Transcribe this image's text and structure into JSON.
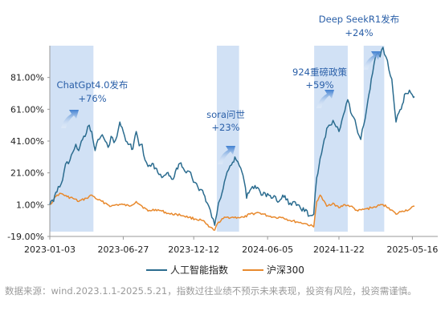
{
  "chart_data": {
    "type": "line",
    "y_ticks": [
      "81.00%",
      "61.00%",
      "41.00%",
      "21.00%",
      "1.00%",
      "-19.00%"
    ],
    "y_values": [
      81,
      61,
      41,
      21,
      1,
      -19
    ],
    "ylim": [
      -19,
      101
    ],
    "x_ticks": [
      "2023-01-03",
      "2023-06-27",
      "2023-12-12",
      "2024-06-05",
      "2024-11-22",
      "2025-05-16"
    ],
    "x_start": "2023-01-03",
    "x_end": "2025-05-21",
    "legend": {
      "position": "bottom"
    },
    "series": [
      {
        "name": "人工智能指数",
        "color": "#2b6c8f",
        "points": [
          [
            "2023-01-03",
            1
          ],
          [
            "2023-01-12",
            3
          ],
          [
            "2023-01-20",
            9
          ],
          [
            "2023-01-30",
            14
          ],
          [
            "2023-02-06",
            22
          ],
          [
            "2023-02-13",
            28
          ],
          [
            "2023-02-20",
            29
          ],
          [
            "2023-02-27",
            34
          ],
          [
            "2023-03-06",
            39
          ],
          [
            "2023-03-13",
            35
          ],
          [
            "2023-03-22",
            42
          ],
          [
            "2023-03-31",
            46
          ],
          [
            "2023-04-07",
            51
          ],
          [
            "2023-04-13",
            47
          ],
          [
            "2023-04-21",
            35
          ],
          [
            "2023-04-28",
            42
          ],
          [
            "2023-05-08",
            45
          ],
          [
            "2023-05-15",
            41
          ],
          [
            "2023-05-22",
            37
          ],
          [
            "2023-05-29",
            44
          ],
          [
            "2023-06-05",
            40
          ],
          [
            "2023-06-12",
            44
          ],
          [
            "2023-06-19",
            53
          ],
          [
            "2023-06-27",
            47
          ],
          [
            "2023-07-03",
            41
          ],
          [
            "2023-07-12",
            39
          ],
          [
            "2023-07-20",
            36
          ],
          [
            "2023-07-28",
            47
          ],
          [
            "2023-08-04",
            38
          ],
          [
            "2023-08-11",
            39
          ],
          [
            "2023-08-18",
            29
          ],
          [
            "2023-08-25",
            25
          ],
          [
            "2023-09-04",
            27
          ],
          [
            "2023-09-12",
            24
          ],
          [
            "2023-09-20",
            20
          ],
          [
            "2023-09-27",
            18
          ],
          [
            "2023-10-09",
            21
          ],
          [
            "2023-10-17",
            19
          ],
          [
            "2023-10-24",
            17
          ],
          [
            "2023-11-01",
            24
          ],
          [
            "2023-11-09",
            27
          ],
          [
            "2023-11-17",
            24
          ],
          [
            "2023-11-24",
            21
          ],
          [
            "2023-12-01",
            22
          ],
          [
            "2023-12-08",
            18
          ],
          [
            "2023-12-15",
            15
          ],
          [
            "2023-12-22",
            12
          ],
          [
            "2024-01-02",
            10
          ],
          [
            "2024-01-10",
            3
          ],
          [
            "2024-01-17",
            0
          ],
          [
            "2024-01-24",
            -7
          ],
          [
            "2024-01-31",
            -12
          ],
          [
            "2024-02-05",
            -5
          ],
          [
            "2024-02-09",
            2
          ],
          [
            "2024-02-20",
            11
          ],
          [
            "2024-02-26",
            18
          ],
          [
            "2024-03-04",
            23
          ],
          [
            "2024-03-11",
            26
          ],
          [
            "2024-03-19",
            31
          ],
          [
            "2024-03-26",
            28
          ],
          [
            "2024-04-02",
            24
          ],
          [
            "2024-04-10",
            16
          ],
          [
            "2024-04-16",
            5
          ],
          [
            "2024-04-24",
            10
          ],
          [
            "2024-05-06",
            13
          ],
          [
            "2024-05-15",
            11
          ],
          [
            "2024-05-24",
            7
          ],
          [
            "2024-06-05",
            8
          ],
          [
            "2024-06-14",
            5
          ],
          [
            "2024-06-24",
            6
          ],
          [
            "2024-07-02",
            3
          ],
          [
            "2024-07-11",
            7
          ],
          [
            "2024-07-19",
            4
          ],
          [
            "2024-07-29",
            2
          ],
          [
            "2024-08-07",
            3
          ],
          [
            "2024-08-16",
            1
          ],
          [
            "2024-08-26",
            -3
          ],
          [
            "2024-09-04",
            -2
          ],
          [
            "2024-09-13",
            -6
          ],
          [
            "2024-09-23",
            -5
          ],
          [
            "2024-09-30",
            18
          ],
          [
            "2024-10-08",
            30
          ],
          [
            "2024-10-15",
            38
          ],
          [
            "2024-10-24",
            49
          ],
          [
            "2024-11-01",
            51
          ],
          [
            "2024-11-08",
            54
          ],
          [
            "2024-11-15",
            50
          ],
          [
            "2024-11-22",
            47
          ],
          [
            "2024-11-29",
            54
          ],
          [
            "2024-12-06",
            60
          ],
          [
            "2024-12-13",
            67
          ],
          [
            "2024-12-20",
            59
          ],
          [
            "2024-12-27",
            56
          ],
          [
            "2025-01-06",
            46
          ],
          [
            "2025-01-13",
            42
          ],
          [
            "2025-01-20",
            51
          ],
          [
            "2025-01-27",
            61
          ],
          [
            "2025-02-07",
            80
          ],
          [
            "2025-02-14",
            90
          ],
          [
            "2025-02-21",
            96
          ],
          [
            "2025-02-28",
            94
          ],
          [
            "2025-03-07",
            100
          ],
          [
            "2025-03-14",
            94
          ],
          [
            "2025-03-21",
            86
          ],
          [
            "2025-03-28",
            80
          ],
          [
            "2025-04-07",
            53
          ],
          [
            "2025-04-14",
            59
          ],
          [
            "2025-04-22",
            64
          ],
          [
            "2025-04-30",
            71
          ],
          [
            "2025-05-09",
            73
          ],
          [
            "2025-05-16",
            70
          ],
          [
            "2025-05-21",
            69
          ]
        ]
      },
      {
        "name": "沪深300",
        "color": "#e8892d",
        "points": [
          [
            "2023-01-03",
            1
          ],
          [
            "2023-01-12",
            4
          ],
          [
            "2023-01-20",
            7
          ],
          [
            "2023-01-30",
            8
          ],
          [
            "2023-02-13",
            6
          ],
          [
            "2023-02-27",
            5
          ],
          [
            "2023-03-13",
            3
          ],
          [
            "2023-03-31",
            5
          ],
          [
            "2023-04-13",
            7
          ],
          [
            "2023-04-28",
            4
          ],
          [
            "2023-05-15",
            2
          ],
          [
            "2023-05-29",
            0
          ],
          [
            "2023-06-12",
            1
          ],
          [
            "2023-06-27",
            1
          ],
          [
            "2023-07-12",
            0
          ],
          [
            "2023-07-28",
            3
          ],
          [
            "2023-08-11",
            0
          ],
          [
            "2023-08-25",
            -3
          ],
          [
            "2023-09-12",
            -2
          ],
          [
            "2023-09-27",
            -3
          ],
          [
            "2023-10-17",
            -5
          ],
          [
            "2023-11-01",
            -5
          ],
          [
            "2023-11-17",
            -6
          ],
          [
            "2023-12-01",
            -7
          ],
          [
            "2023-12-15",
            -8
          ],
          [
            "2024-01-02",
            -9
          ],
          [
            "2024-01-17",
            -13
          ],
          [
            "2024-01-31",
            -15
          ],
          [
            "2024-02-09",
            -10
          ],
          [
            "2024-02-26",
            -7
          ],
          [
            "2024-03-11",
            -7
          ],
          [
            "2024-03-26",
            -7
          ],
          [
            "2024-04-10",
            -7
          ],
          [
            "2024-04-24",
            -5
          ],
          [
            "2024-05-15",
            -4
          ],
          [
            "2024-06-05",
            -6
          ],
          [
            "2024-06-24",
            -7
          ],
          [
            "2024-07-11",
            -7
          ],
          [
            "2024-07-29",
            -9
          ],
          [
            "2024-08-16",
            -10
          ],
          [
            "2024-09-04",
            -11
          ],
          [
            "2024-09-23",
            -13
          ],
          [
            "2024-09-30",
            3
          ],
          [
            "2024-10-08",
            7
          ],
          [
            "2024-10-24",
            0
          ],
          [
            "2024-11-08",
            2
          ],
          [
            "2024-11-22",
            -1
          ],
          [
            "2024-12-06",
            1
          ],
          [
            "2024-12-20",
            0
          ],
          [
            "2025-01-06",
            -3
          ],
          [
            "2025-01-20",
            -2
          ],
          [
            "2025-02-07",
            -1
          ],
          [
            "2025-02-21",
            0
          ],
          [
            "2025-03-07",
            1
          ],
          [
            "2025-03-21",
            -1
          ],
          [
            "2025-04-07",
            -5
          ],
          [
            "2025-04-22",
            -3
          ],
          [
            "2025-05-09",
            -2
          ],
          [
            "2025-05-21",
            0
          ]
        ]
      }
    ],
    "shaded_periods": [
      {
        "start": "2023-01-03",
        "end": "2023-04-17"
      },
      {
        "start": "2024-02-05",
        "end": "2024-03-29"
      },
      {
        "start": "2024-09-24",
        "end": "2024-12-13"
      },
      {
        "start": "2025-01-20",
        "end": "2025-03-10"
      }
    ],
    "annotations": [
      {
        "label": "ChatGpt4.0发布",
        "change": "+76%"
      },
      {
        "label": "sora问世",
        "change": "+23%"
      },
      {
        "label": "924重磅政策",
        "change": "+59%"
      },
      {
        "label": "Deep SeekR1发布",
        "change": "+24%"
      }
    ],
    "colors": {
      "shade": "#c9dcf3",
      "arrow": "#3f7fd0",
      "annotation_text": "#2a5fa8",
      "grid_axis": "#999999"
    }
  },
  "footnote": "数据来源：wind.2023.1.1-2025.5.21，指数过往业绩不预示未来表现，投资有风险，投资需谨慎。"
}
